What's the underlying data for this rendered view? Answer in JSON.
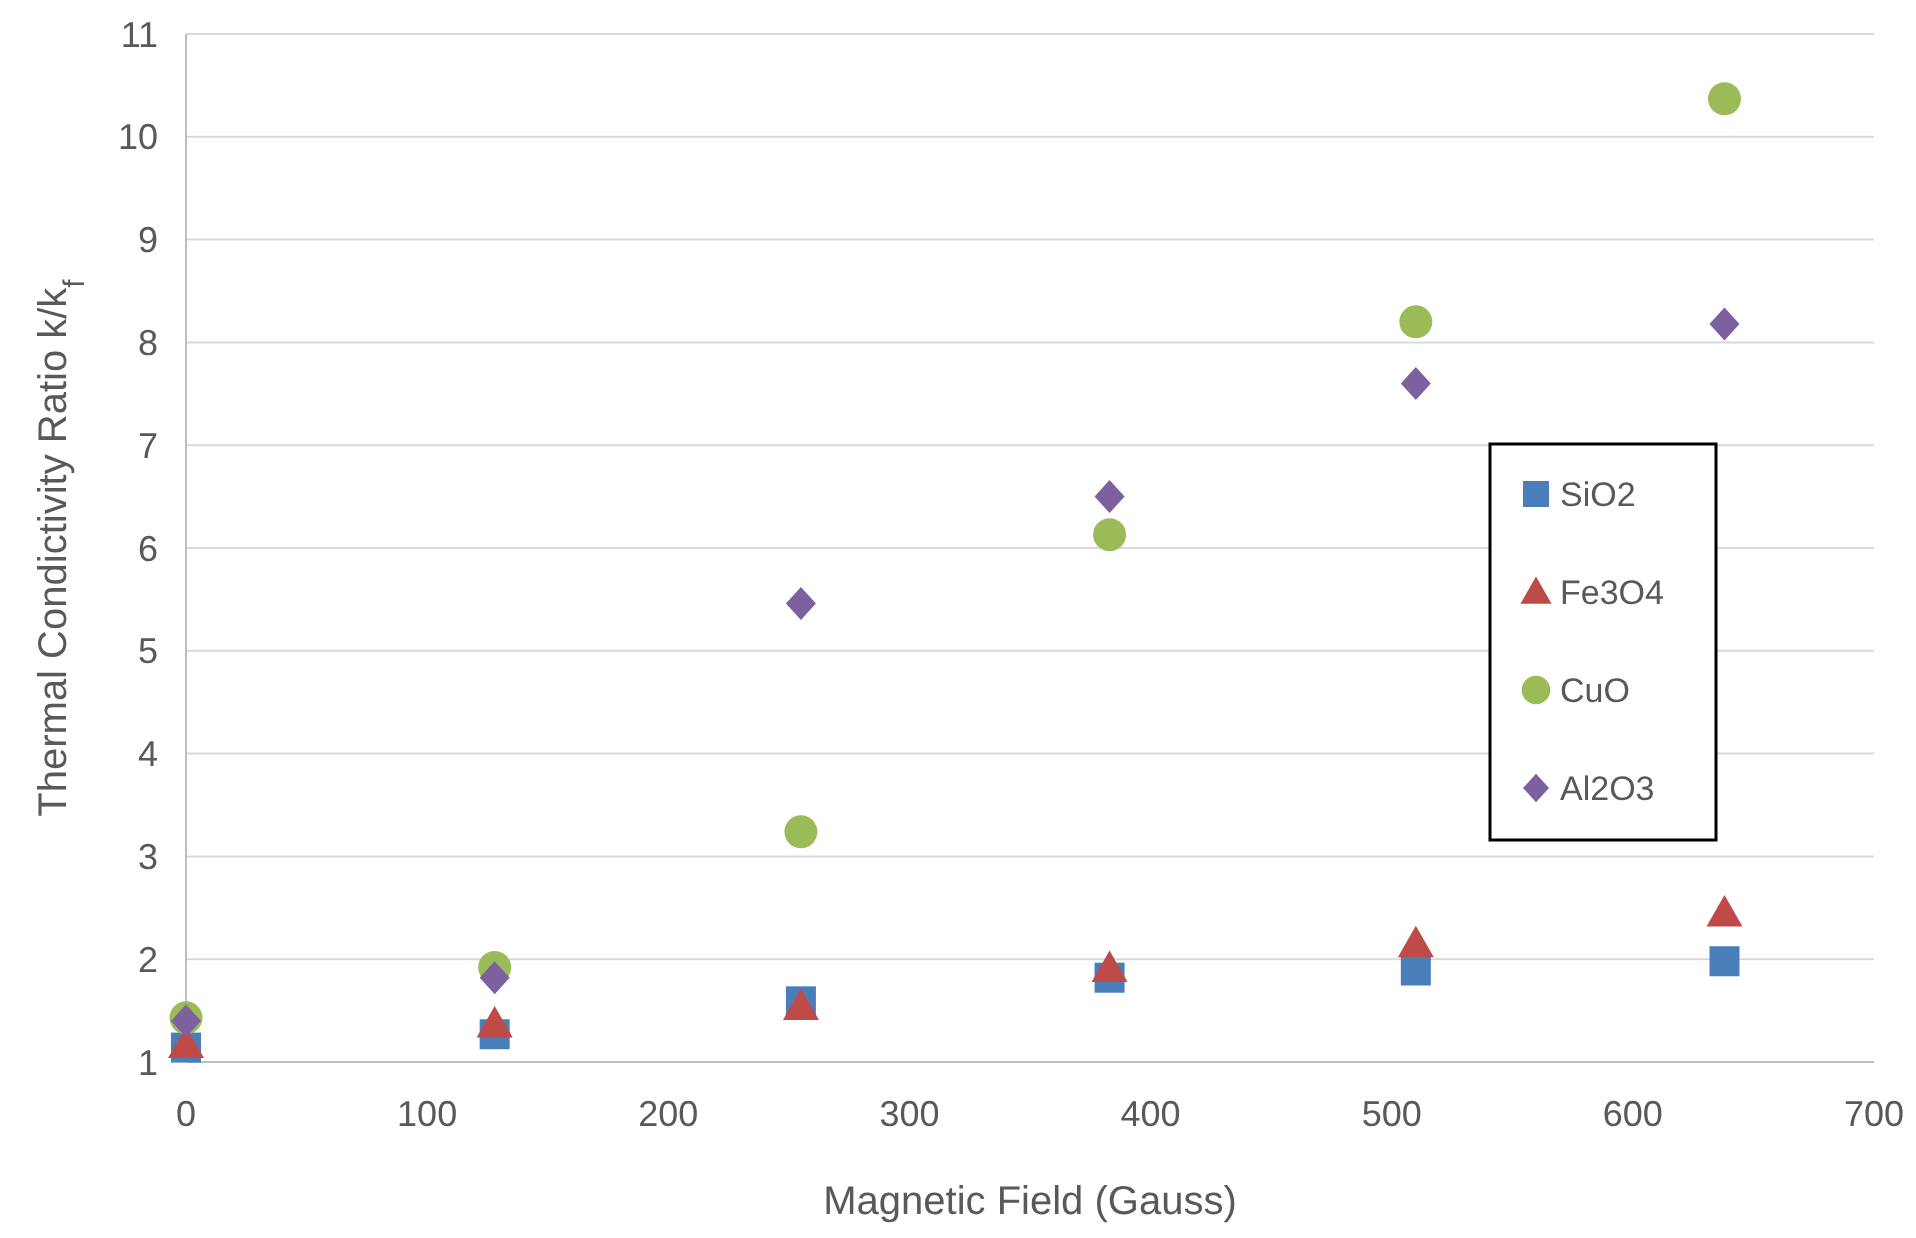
{
  "chart_data": {
    "type": "scatter",
    "xlabel": "Magnetic Field (Gauss)",
    "ylabel": "Thermal Condictivity Ratio k/k$_{f}$",
    "x": [
      0,
      128,
      255,
      383,
      510,
      638
    ],
    "xlim": [
      0,
      700
    ],
    "xticks": [
      0,
      100,
      200,
      300,
      400,
      500,
      600,
      700
    ],
    "ylim": [
      1,
      11
    ],
    "yticks": [
      1,
      2,
      3,
      4,
      5,
      6,
      7,
      8,
      9,
      10,
      11
    ],
    "grid": "y",
    "legend": "right",
    "series": [
      {
        "name": "SiO2",
        "color": "#4a7ebb",
        "marker": "square",
        "values": [
          1.14,
          1.27,
          1.59,
          1.82,
          1.89,
          1.98
        ]
      },
      {
        "name": "Fe3O4",
        "color": "#be4b48",
        "marker": "triangle",
        "values": [
          1.17,
          1.37,
          1.54,
          1.91,
          2.15,
          2.45
        ]
      },
      {
        "name": "CuO",
        "color": "#9bbb59",
        "marker": "circle",
        "values": [
          1.43,
          1.92,
          3.24,
          6.13,
          8.2,
          10.37
        ]
      },
      {
        "name": "Al2O3",
        "color": "#7d60a0",
        "marker": "diamond",
        "values": [
          1.4,
          1.82,
          5.46,
          6.5,
          7.6,
          8.18
        ]
      }
    ]
  }
}
